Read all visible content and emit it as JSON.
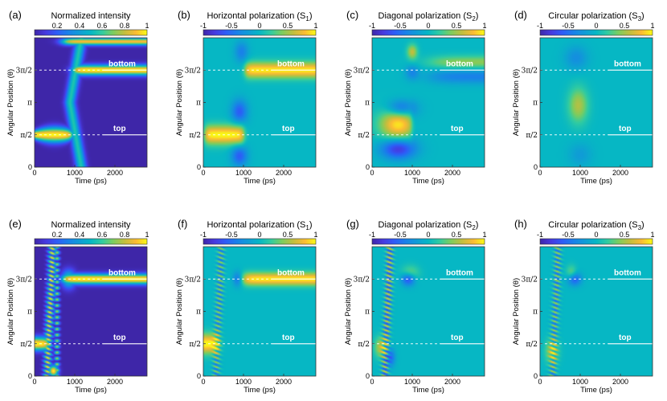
{
  "chart_data": {
    "type": "heatmap",
    "xlabel": "Time (ps)",
    "ylabel": "Angular Position (θ)",
    "xlim": [
      0,
      2800
    ],
    "ylim": [
      0,
      6.2832
    ],
    "x_ticks": [
      "0",
      "1000",
      "2000"
    ],
    "x_tick_values": [
      0,
      1000,
      2000
    ],
    "y_ticks": [
      "0",
      "π/2",
      "π",
      "3π/2"
    ],
    "y_tick_values": [
      0,
      1.5708,
      3.1416,
      4.7124
    ],
    "annotations": [
      {
        "text": "top",
        "theta": 1.5708,
        "line_from_ps": 1700,
        "line_to_ps": 2800,
        "dashed_from_ps": 0
      },
      {
        "text": "bottom",
        "theta": 4.7124,
        "line_from_ps": 1700,
        "line_to_ps": 2800,
        "dashed_from_ps": 0
      }
    ],
    "panels": [
      {
        "label": "(a)",
        "title": "Normalized intensity",
        "subscript": "",
        "colormap": "parula",
        "clim": [
          0,
          1
        ],
        "cbar_ticks": [
          "0.2",
          "0.4",
          "0.6",
          "0.8",
          "1"
        ],
        "cbar_tick_values": [
          0.2,
          0.4,
          0.6,
          0.8,
          1
        ],
        "kind": "I",
        "row": 0
      },
      {
        "label": "(b)",
        "title": "Horizontal polarization (S",
        "subscript": "1",
        "colormap": "parula",
        "clim": [
          -1,
          1
        ],
        "cbar_ticks": [
          "-1",
          "-0.5",
          "0",
          "0.5",
          "1"
        ],
        "cbar_tick_values": [
          -1,
          -0.5,
          0,
          0.5,
          1
        ],
        "kind": "S1",
        "row": 0
      },
      {
        "label": "(c)",
        "title": "Diagonal polarization (S",
        "subscript": "2",
        "colormap": "parula",
        "clim": [
          -1,
          1
        ],
        "cbar_ticks": [
          "-1",
          "-0.5",
          "0",
          "0.5",
          "1"
        ],
        "cbar_tick_values": [
          -1,
          -0.5,
          0,
          0.5,
          1
        ],
        "kind": "S2",
        "row": 0
      },
      {
        "label": "(d)",
        "title": "Circular polarization (S",
        "subscript": "3",
        "colormap": "parula",
        "clim": [
          -1,
          1
        ],
        "cbar_ticks": [
          "-1",
          "-0.5",
          "0",
          "0.5",
          "1"
        ],
        "cbar_tick_values": [
          -1,
          -0.5,
          0,
          0.5,
          1
        ],
        "kind": "S3",
        "row": 0
      },
      {
        "label": "(e)",
        "title": "Normalized intensity",
        "subscript": "",
        "colormap": "parula",
        "clim": [
          0,
          1
        ],
        "cbar_ticks": [
          "0.2",
          "0.4",
          "0.6",
          "0.8",
          "1"
        ],
        "cbar_tick_values": [
          0.2,
          0.4,
          0.6,
          0.8,
          1
        ],
        "kind": "I",
        "row": 1
      },
      {
        "label": "(f)",
        "title": "Horizontal polarization (S",
        "subscript": "1",
        "colormap": "parula",
        "clim": [
          -1,
          1
        ],
        "cbar_ticks": [
          "-1",
          "-0.5",
          "0",
          "0.5",
          "1"
        ],
        "cbar_tick_values": [
          -1,
          -0.5,
          0,
          0.5,
          1
        ],
        "kind": "S1",
        "row": 1
      },
      {
        "label": "(g)",
        "title": "Diagonal polarization (S",
        "subscript": "2",
        "colormap": "parula",
        "clim": [
          -1,
          1
        ],
        "cbar_ticks": [
          "-1",
          "-0.5",
          "0",
          "0.5",
          "1"
        ],
        "cbar_tick_values": [
          -1,
          -0.5,
          0,
          0.5,
          1
        ],
        "kind": "S2",
        "row": 1
      },
      {
        "label": "(h)",
        "title": "Circular polarization (S",
        "subscript": "3",
        "colormap": "parula",
        "clim": [
          -1,
          1
        ],
        "cbar_ticks": [
          "-1",
          "-0.5",
          "0",
          "0.5",
          "1"
        ],
        "cbar_tick_values": [
          -1,
          -0.5,
          0,
          0.5,
          1
        ],
        "kind": "S3",
        "row": 1
      }
    ]
  }
}
